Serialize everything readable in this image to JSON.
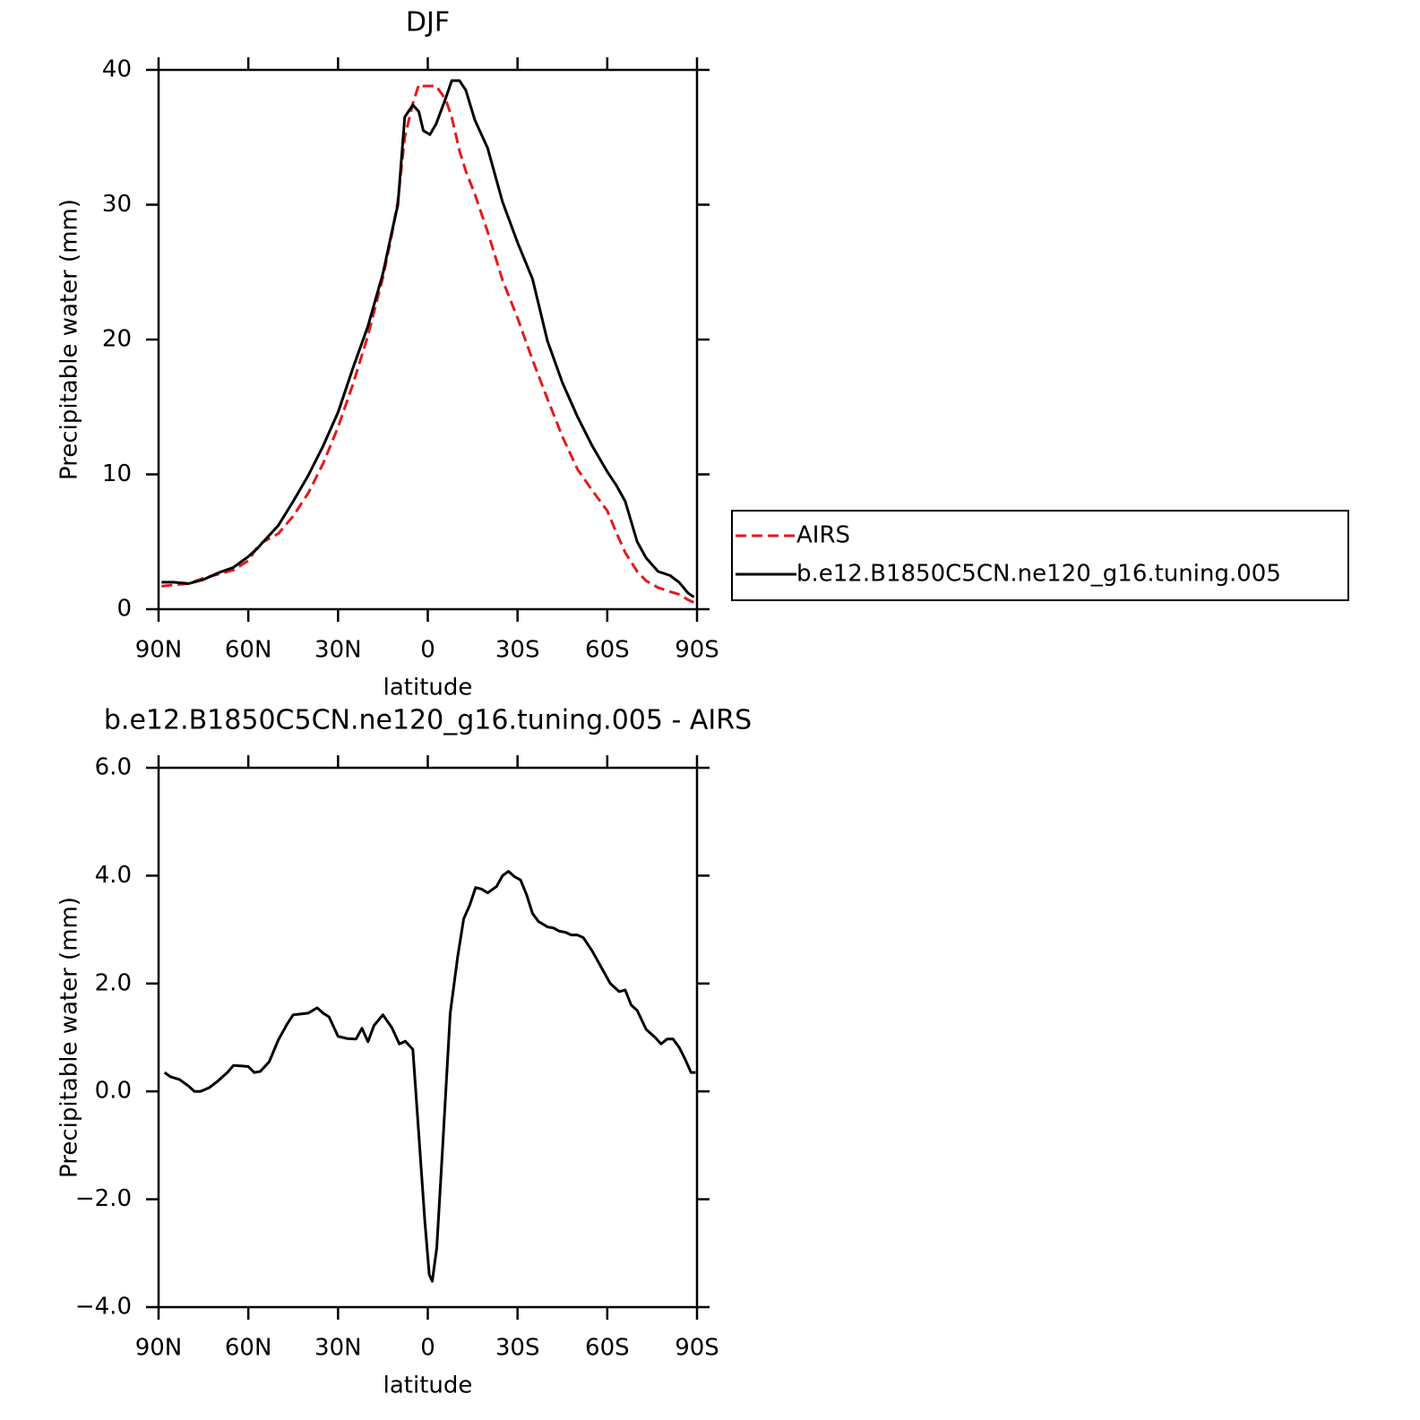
{
  "chart_data": [
    {
      "type": "line",
      "title": "DJF",
      "xlabel": "latitude",
      "ylabel": "Precipitable water (mm)",
      "x": [
        89,
        85,
        80,
        75,
        70,
        65,
        60,
        57,
        55,
        50,
        45,
        40,
        35,
        30,
        25,
        20,
        15,
        12,
        10,
        7.7,
        5,
        3,
        1.5,
        -0.7,
        -2.8,
        -6,
        -8,
        -10.6,
        -12.7,
        -15.7,
        -20,
        -25,
        -30,
        -35,
        -40,
        -45,
        -50,
        -55,
        -60,
        -63,
        -66,
        -70,
        -73,
        -77,
        -81,
        -84,
        -87,
        -89
      ],
      "series": [
        {
          "name": "AIRS",
          "color": "#e41a1c",
          "line_style": "dashed",
          "values": [
            1.7,
            1.8,
            1.9,
            2.3,
            2.6,
            2.9,
            3.6,
            4.6,
            5.0,
            5.6,
            6.9,
            8.6,
            10.8,
            13.5,
            16.7,
            20.3,
            24.6,
            27.8,
            30.3,
            35.0,
            37.5,
            38.9,
            38.8,
            38.8,
            38.8,
            37.8,
            36.5,
            34.0,
            32.5,
            30.8,
            28.0,
            24.4,
            21.6,
            18.5,
            15.6,
            12.8,
            10.4,
            8.8,
            7.3,
            5.7,
            4.2,
            2.8,
            2.1,
            1.6,
            1.3,
            1.1,
            0.7,
            0.5
          ]
        },
        {
          "name": "b.e12.B1850C5CN.ne120_g16.tuning.005",
          "color": "#000000",
          "line_style": "solid",
          "values": [
            2.0,
            2.0,
            1.9,
            2.2,
            2.7,
            3.1,
            3.9,
            4.5,
            5.0,
            6.2,
            8.0,
            9.9,
            12.1,
            14.6,
            17.9,
            21.0,
            24.9,
            28.0,
            30.0,
            36.5,
            37.4,
            36.9,
            35.5,
            35.2,
            36.0,
            37.9,
            39.2,
            39.2,
            38.5,
            36.3,
            34.2,
            30.2,
            27.2,
            24.5,
            19.9,
            16.8,
            14.3,
            12.1,
            10.2,
            9.2,
            8.0,
            5.0,
            3.8,
            2.8,
            2.5,
            2.0,
            1.2,
            0.9
          ]
        }
      ],
      "xlim": [
        90,
        -90
      ],
      "xticks": [
        {
          "value": 90,
          "label": "90N"
        },
        {
          "value": 60,
          "label": "60N"
        },
        {
          "value": 30,
          "label": "30N"
        },
        0,
        {
          "value": -30,
          "label": "30S"
        },
        {
          "value": -60,
          "label": "60S"
        },
        {
          "value": -90,
          "label": "90S"
        }
      ],
      "ylim": [
        0,
        40
      ],
      "yticks": [
        0,
        10,
        20,
        30,
        40
      ],
      "grid": false,
      "legend": "right"
    },
    {
      "type": "line",
      "title": "b.e12.B1850C5CN.ne120_g16.tuning.005 - AIRS",
      "xlabel": "latitude",
      "ylabel": "Precipitable water (mm)",
      "x": [
        88,
        86,
        83,
        80,
        78,
        76,
        73,
        70,
        67,
        65,
        62,
        60,
        58,
        56,
        53,
        50,
        47,
        45,
        40,
        37,
        35,
        33,
        30,
        27,
        24,
        22,
        20,
        18,
        15,
        12,
        9.5,
        7.5,
        5,
        3,
        1,
        -0.5,
        -1.5,
        -3,
        -5,
        -7.5,
        -10,
        -12,
        -14,
        -16,
        -18,
        -20,
        -23,
        -25,
        -27,
        -29,
        -31,
        -33,
        -35,
        -37,
        -40,
        -42,
        -44,
        -46,
        -48,
        -50,
        -52,
        -55,
        -58,
        -61,
        -64,
        -66,
        -68,
        -70,
        -73,
        -76,
        -78,
        -80,
        -82,
        -84,
        -86,
        -88,
        -89.5
      ],
      "series": [
        {
          "color": "#000000",
          "line_style": "solid",
          "values": [
            0.35,
            0.27,
            0.22,
            0.1,
            0.0,
            0.0,
            0.07,
            0.2,
            0.35,
            0.48,
            0.47,
            0.46,
            0.35,
            0.37,
            0.55,
            0.95,
            1.25,
            1.42,
            1.45,
            1.55,
            1.45,
            1.38,
            1.02,
            0.98,
            0.97,
            1.17,
            0.92,
            1.22,
            1.42,
            1.18,
            0.88,
            0.93,
            0.78,
            -0.8,
            -2.4,
            -3.4,
            -3.52,
            -2.9,
            -1.0,
            1.45,
            2.5,
            3.2,
            3.45,
            3.78,
            3.75,
            3.68,
            3.8,
            4.0,
            4.08,
            3.98,
            3.92,
            3.65,
            3.3,
            3.15,
            3.05,
            3.03,
            2.97,
            2.95,
            2.9,
            2.9,
            2.85,
            2.6,
            2.3,
            2.0,
            1.85,
            1.88,
            1.6,
            1.5,
            1.15,
            1.0,
            0.88,
            0.97,
            0.97,
            0.82,
            0.6,
            0.35,
            0.35
          ]
        }
      ],
      "xlim": [
        90,
        -90
      ],
      "xticks": [
        {
          "value": 90,
          "label": "90N"
        },
        {
          "value": 60,
          "label": "60N"
        },
        {
          "value": 30,
          "label": "30N"
        },
        0,
        {
          "value": -30,
          "label": "30S"
        },
        {
          "value": -60,
          "label": "60S"
        },
        {
          "value": -90,
          "label": "90S"
        }
      ],
      "ylim": [
        -4,
        6
      ],
      "yticks": [
        {
          "value": -4,
          "label": "−4.0"
        },
        {
          "value": -2,
          "label": "−2.0"
        },
        {
          "value": 0,
          "label": "0.0"
        },
        {
          "value": 2,
          "label": "2.0"
        },
        {
          "value": 4,
          "label": "4.0"
        },
        {
          "value": 6,
          "label": "6.0"
        }
      ],
      "grid": false
    }
  ]
}
